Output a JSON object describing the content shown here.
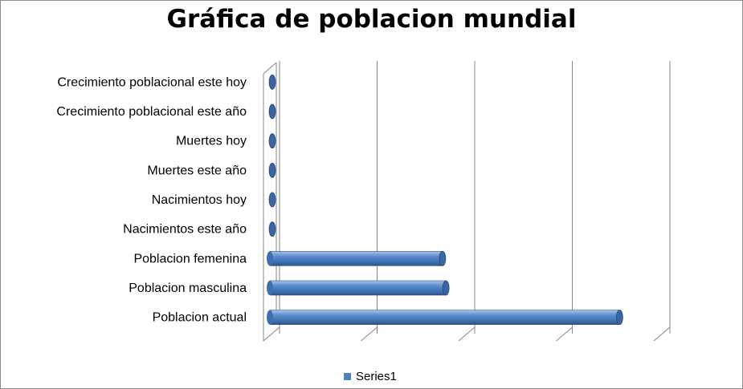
{
  "chart_data": {
    "type": "bar",
    "orientation": "horizontal",
    "style": "3d-cylinder",
    "title": "Gráfica de poblacion mundial",
    "xlabel": "",
    "ylabel": "",
    "categories": [
      "Poblacion actual",
      "Poblacion masculina",
      "Poblacion femenina",
      "Nacimientos este año",
      "Nacimientos hoy",
      "Muertes este año",
      "Muertes hoy",
      "Crecimiento poblacional este año",
      "Crecimiento poblacional este hoy"
    ],
    "series": [
      {
        "name": "Series1",
        "color": "#4f81bd",
        "values": [
          7.2,
          3.64,
          3.57,
          0.05,
          0.01,
          0.02,
          0.01,
          0.03,
          0.01
        ]
      }
    ],
    "xlim": [
      0,
      8
    ],
    "grid": true,
    "tick_labels_shown": false,
    "legend": {
      "position": "bottom",
      "entries": [
        "Series1"
      ]
    }
  }
}
